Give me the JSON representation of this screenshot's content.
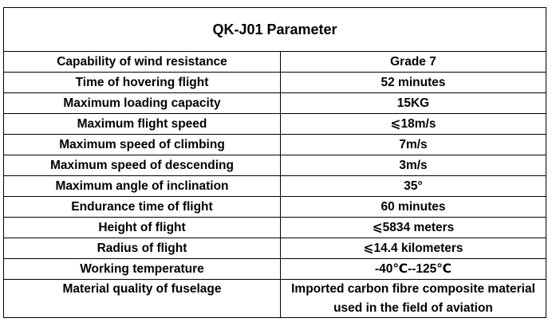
{
  "title": "QK-J01 Parameter",
  "rows": [
    {
      "label": "Capability of wind resistance",
      "value": "Grade 7"
    },
    {
      "label": "Time of hovering flight",
      "value": "52 minutes"
    },
    {
      "label": "Maximum loading capacity",
      "value": "15KG"
    },
    {
      "label": "Maximum flight speed",
      "value": "⩽18m/s"
    },
    {
      "label": "Maximum speed of climbing",
      "value": "7m/s"
    },
    {
      "label": "Maximum speed of descending",
      "value": "3m/s"
    },
    {
      "label": "Maximum angle of inclination",
      "value": "35°"
    },
    {
      "label": "Endurance time of flight",
      "value": "60 minutes"
    },
    {
      "label": "Height of flight",
      "value": "⩽5834 meters"
    },
    {
      "label": "Radius of flight",
      "value": "⩽14.4 kilometers"
    },
    {
      "label": "Working temperature",
      "value": "-40℃--125℃"
    },
    {
      "label": "Material quality of fuselage",
      "value": "Imported carbon fibre composite material used in the field of aviation"
    }
  ]
}
